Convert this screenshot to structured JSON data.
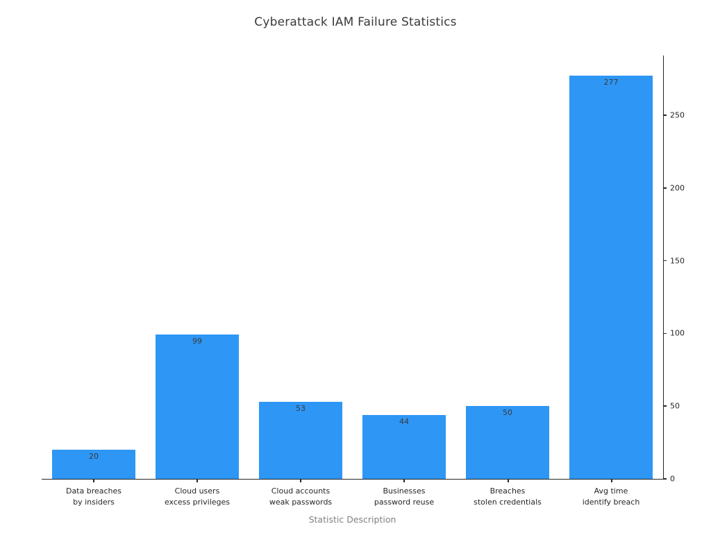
{
  "chart_data": {
    "type": "bar",
    "title": "Cyberattack IAM Failure Statistics",
    "xlabel": "Statistic Description",
    "ylabel": "",
    "categories": [
      "Data breaches\nby insiders",
      "Cloud users\nexcess privileges",
      "Cloud accounts\nweak passwords",
      "Businesses\npassword reuse",
      "Breaches\nstolen credentials",
      "Avg time\nidentify breach"
    ],
    "values": [
      20,
      99,
      53,
      44,
      50,
      277
    ],
    "bar_value_labels": [
      "20",
      "99",
      "53",
      "44",
      "50",
      "277"
    ],
    "yticks": [
      0,
      50,
      100,
      150,
      200,
      250
    ],
    "ylim": [
      0,
      291
    ],
    "y_axis_side": "right",
    "grid": false,
    "legend": false,
    "colors": {
      "bar_fill": "#2e96f5",
      "value_label": "#3a3a3a",
      "tick_label": "#262626",
      "axis_line": "#262626",
      "title": "#3a3a3a",
      "xlabel": "#808080",
      "background": "#ffffff"
    }
  }
}
